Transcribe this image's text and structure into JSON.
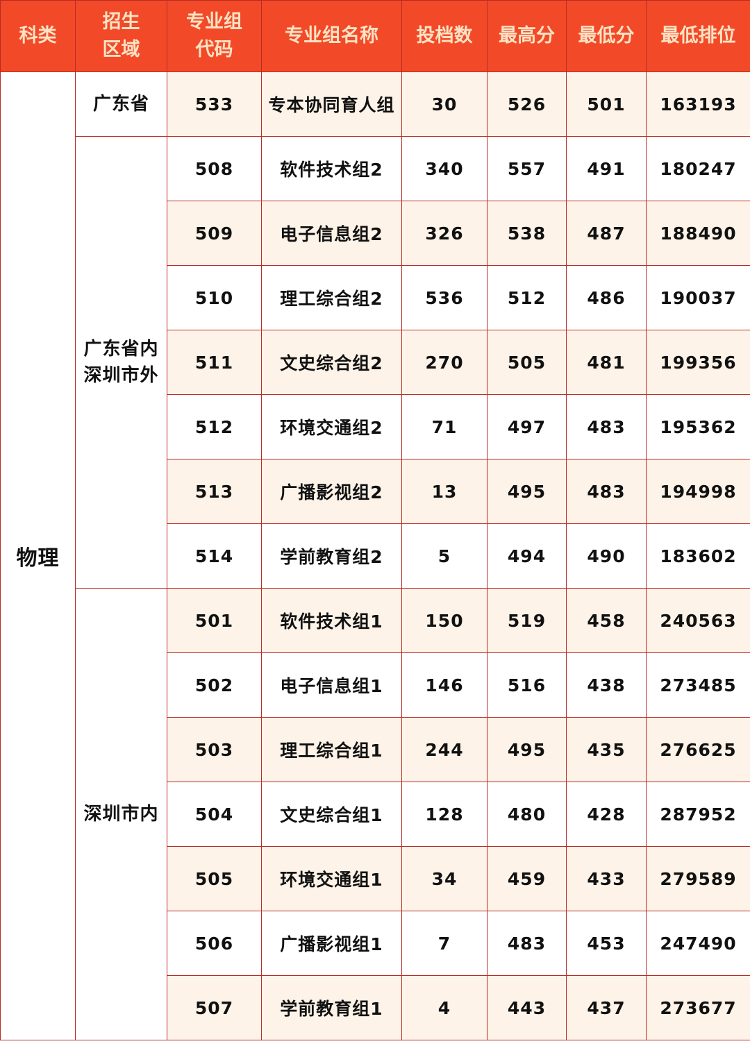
{
  "colors": {
    "header_bg": "#f24a28",
    "header_text": "#fde2c4",
    "border": "#b92b25",
    "alt_row": "#fdf3e8"
  },
  "headers": [
    "科类",
    "招生\n区域",
    "专业组\n代码",
    "专业组名称",
    "投档数",
    "最高分",
    "最低分",
    "最低排位"
  ],
  "subject": "物理",
  "regions": [
    {
      "name": "广东省",
      "rows": [
        [
          "533",
          "专本协同育人组",
          "30",
          "526",
          "501",
          "163193"
        ]
      ]
    },
    {
      "name": "广东省内\n深圳市外",
      "rows": [
        [
          "508",
          "软件技术组2",
          "340",
          "557",
          "491",
          "180247"
        ],
        [
          "509",
          "电子信息组2",
          "326",
          "538",
          "487",
          "188490"
        ],
        [
          "510",
          "理工综合组2",
          "536",
          "512",
          "486",
          "190037"
        ],
        [
          "511",
          "文史综合组2",
          "270",
          "505",
          "481",
          "199356"
        ],
        [
          "512",
          "环境交通组2",
          "71",
          "497",
          "483",
          "195362"
        ],
        [
          "513",
          "广播影视组2",
          "13",
          "495",
          "483",
          "194998"
        ],
        [
          "514",
          "学前教育组2",
          "5",
          "494",
          "490",
          "183602"
        ]
      ]
    },
    {
      "name": "深圳市内",
      "rows": [
        [
          "501",
          "软件技术组1",
          "150",
          "519",
          "458",
          "240563"
        ],
        [
          "502",
          "电子信息组1",
          "146",
          "516",
          "438",
          "273485"
        ],
        [
          "503",
          "理工综合组1",
          "244",
          "495",
          "435",
          "276625"
        ],
        [
          "504",
          "文史综合组1",
          "128",
          "480",
          "428",
          "287952"
        ],
        [
          "505",
          "环境交通组1",
          "34",
          "459",
          "433",
          "279589"
        ],
        [
          "506",
          "广播影视组1",
          "7",
          "483",
          "453",
          "247490"
        ],
        [
          "507",
          "学前教育组1",
          "4",
          "443",
          "437",
          "273677"
        ]
      ]
    }
  ]
}
